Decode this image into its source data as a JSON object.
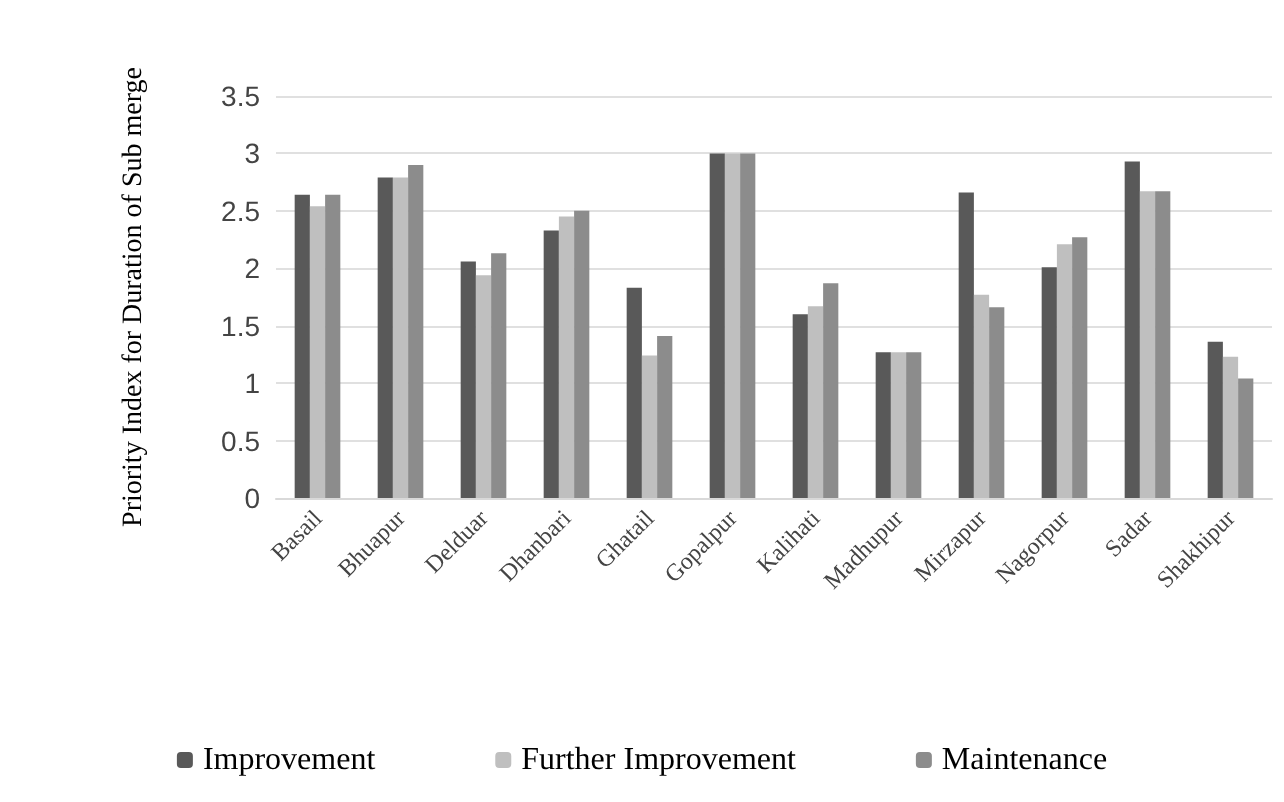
{
  "chart_data": {
    "type": "bar",
    "ylabel": "Priority Index for Duration of Sub merge",
    "categories": [
      "Basail",
      "Bhuapur",
      "Delduar",
      "Dhanbari",
      "Ghatail",
      "Gopalpur",
      "Kalihati",
      "Madhupur",
      "Mirzapur",
      "Nagorpur",
      "Sadar",
      "Shakhipur"
    ],
    "series": [
      {
        "name": "Improvement",
        "color": "#595959",
        "values": [
          2.64,
          2.79,
          2.06,
          2.33,
          1.83,
          3.0,
          1.6,
          1.27,
          2.66,
          2.01,
          2.93,
          1.36
        ]
      },
      {
        "name": "Further Improvement",
        "color": "#bfbfbf",
        "values": [
          2.54,
          2.79,
          1.94,
          2.45,
          1.24,
          3.0,
          1.67,
          1.27,
          1.77,
          2.21,
          2.67,
          1.23
        ]
      },
      {
        "name": "Maintenance",
        "color": "#8c8c8c",
        "values": [
          2.64,
          2.9,
          2.13,
          2.5,
          1.41,
          3.0,
          1.87,
          1.27,
          1.66,
          2.27,
          2.67,
          1.04
        ]
      }
    ],
    "ylim": [
      0,
      3.5
    ],
    "yticks": [
      0,
      0.5,
      1,
      1.5,
      2,
      2.5,
      3,
      3.5
    ],
    "grid": "y",
    "legend": "bottom"
  }
}
